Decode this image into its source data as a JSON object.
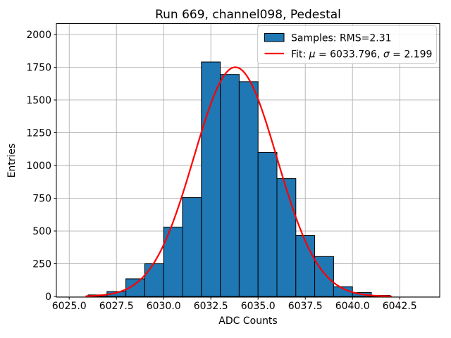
{
  "title": "Run 669, channel098, Pedestal",
  "x_axis": {
    "label": "ADC Counts",
    "tick_labels": [
      "6025.0",
      "6027.5",
      "6030.0",
      "6032.5",
      "6035.0",
      "6037.5",
      "6040.0",
      "6042.5"
    ]
  },
  "y_axis": {
    "label": "Entries",
    "tick_labels": [
      "0",
      "250",
      "500",
      "750",
      "1000",
      "1250",
      "1500",
      "1750",
      "2000"
    ]
  },
  "legend": {
    "samples_label": "Samples: RMS=2.31",
    "fit_label": "Fit: μ = 6033.796, σ = 2.199",
    "position": "upper right"
  },
  "colors": {
    "hist_fill": "#1f77b4",
    "hist_edge": "#000000",
    "fit_line": "#ff0000",
    "grid": "#b0b0b0",
    "spine": "#000000",
    "legend_border": "#cccccc",
    "background": "#ffffff"
  },
  "chart_data": {
    "type": "bar",
    "subtype": "histogram",
    "title": "Run 669, channel098, Pedestal",
    "xlabel": "ADC Counts",
    "ylabel": "Entries",
    "grid": true,
    "legend_position": "upper right",
    "bin_edges": [
      6026,
      6027,
      6028,
      6029,
      6030,
      6031,
      6032,
      6033,
      6034,
      6035,
      6036,
      6037,
      6038,
      6039,
      6040,
      6041,
      6042
    ],
    "values": [
      12,
      38,
      135,
      250,
      530,
      755,
      1790,
      1695,
      1640,
      1100,
      900,
      465,
      305,
      75,
      30,
      8
    ],
    "x_ticks": [
      6025.0,
      6027.5,
      6030.0,
      6032.5,
      6035.0,
      6037.5,
      6040.0,
      6042.5
    ],
    "y_ticks": [
      0,
      250,
      500,
      750,
      1000,
      1250,
      1500,
      1750,
      2000
    ],
    "xlim": [
      6024.32,
      6044.62
    ],
    "ylim": [
      -5,
      2083
    ],
    "series": [
      {
        "name": "Samples: RMS=2.31",
        "type": "histogram",
        "rms": 2.31
      },
      {
        "name": "Fit: μ = 6033.796, σ = 2.199",
        "type": "gaussian_fit",
        "mu": 6033.796,
        "sigma": 2.199,
        "amplitude": 1750,
        "x_range": [
          6025.9,
          6042.05
        ]
      }
    ]
  }
}
